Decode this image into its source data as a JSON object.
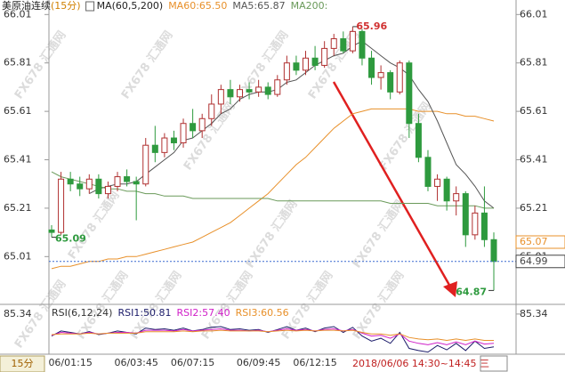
{
  "chart_data": [
    {
      "type": "candlestick",
      "title": "美原油连续",
      "period": "(15分)",
      "indicator": "MA(60,5,200)",
      "categories": [
        null,
        null,
        "06/01:15",
        null,
        null,
        null,
        null,
        null,
        null,
        "06/03:45",
        null,
        null,
        null,
        null,
        null,
        "06/07:15",
        null,
        null,
        null,
        null,
        null,
        null,
        "06/09:45",
        null,
        null,
        null,
        null,
        null,
        "06/12:15",
        null,
        null,
        null,
        null,
        null,
        null,
        null,
        null,
        null,
        null,
        null,
        null,
        null,
        null,
        null,
        null,
        null,
        null,
        null
      ],
      "cursor_label": "2018/06/06 14:30~14:45 三",
      "interval_button": "15分",
      "open": [
        65.12,
        65.11,
        65.33,
        65.31,
        65.29,
        65.33,
        65.27,
        65.3,
        65.34,
        65.32,
        65.31,
        65.47,
        65.44,
        65.5,
        65.48,
        65.56,
        65.53,
        65.58,
        65.64,
        65.7,
        65.67,
        65.7,
        65.69,
        65.71,
        65.68,
        65.74,
        65.81,
        65.78,
        65.83,
        65.8,
        65.87,
        65.91,
        65.86,
        65.94,
        65.83,
        65.75,
        65.77,
        65.69,
        65.81,
        65.56,
        65.42,
        65.3,
        65.33,
        65.24,
        65.27,
        65.1,
        65.19,
        65.08
      ],
      "high": [
        65.14,
        65.36,
        65.36,
        65.34,
        65.35,
        65.35,
        65.32,
        65.36,
        65.37,
        65.34,
        65.5,
        65.55,
        65.52,
        65.53,
        65.58,
        65.62,
        65.6,
        65.68,
        65.72,
        65.74,
        65.72,
        65.73,
        65.74,
        65.73,
        65.76,
        65.84,
        65.84,
        65.86,
        65.88,
        65.9,
        65.93,
        65.94,
        65.96,
        65.95,
        65.86,
        65.8,
        65.78,
        65.82,
        65.82,
        65.6,
        65.45,
        65.35,
        65.34,
        65.3,
        65.28,
        65.22,
        65.3,
        65.11
      ],
      "low": [
        65.09,
        65.1,
        65.28,
        65.26,
        65.27,
        65.25,
        65.25,
        65.28,
        65.3,
        65.16,
        65.3,
        65.4,
        65.42,
        65.45,
        65.46,
        65.5,
        65.5,
        65.55,
        65.6,
        65.64,
        65.65,
        65.66,
        65.67,
        65.66,
        65.67,
        65.72,
        65.76,
        65.76,
        65.78,
        65.79,
        65.84,
        65.85,
        65.85,
        65.8,
        65.72,
        65.7,
        65.66,
        65.68,
        65.5,
        65.4,
        65.28,
        65.24,
        65.2,
        65.18,
        65.05,
        65.08,
        65.05,
        64.87
      ],
      "close": [
        65.11,
        65.33,
        65.31,
        65.29,
        65.33,
        65.27,
        65.3,
        65.34,
        65.32,
        65.31,
        65.47,
        65.44,
        65.5,
        65.48,
        65.56,
        65.53,
        65.58,
        65.64,
        65.7,
        65.67,
        65.7,
        65.69,
        65.71,
        65.68,
        65.74,
        65.81,
        65.78,
        65.83,
        65.8,
        65.87,
        65.91,
        65.86,
        65.94,
        65.83,
        65.75,
        65.77,
        65.69,
        65.81,
        65.56,
        65.42,
        65.3,
        65.33,
        65.24,
        65.27,
        65.1,
        65.19,
        65.08,
        64.99
      ],
      "up_color": "#b03030",
      "down_color": "#2e9a3e",
      "series": [
        {
          "name": "MA60:65.50",
          "color": "#e8902a",
          "values": [
            64.96,
            64.97,
            64.97,
            64.98,
            64.99,
            64.99,
            65.0,
            65.0,
            65.01,
            65.01,
            65.02,
            65.03,
            65.04,
            65.05,
            65.06,
            65.07,
            65.09,
            65.11,
            65.13,
            65.15,
            65.18,
            65.21,
            65.24,
            65.27,
            65.31,
            65.35,
            65.39,
            65.42,
            65.46,
            65.5,
            65.54,
            65.57,
            65.6,
            65.61,
            65.62,
            65.62,
            65.62,
            65.62,
            65.62,
            65.61,
            65.61,
            65.61,
            65.6,
            65.6,
            65.59,
            65.59,
            65.58,
            65.57
          ]
        },
        {
          "name": "MA5:65.87",
          "color": "#555555",
          "values": [
            null,
            null,
            null,
            null,
            65.27,
            65.29,
            65.3,
            65.31,
            65.31,
            65.32,
            65.35,
            65.38,
            65.41,
            65.44,
            65.49,
            65.5,
            65.53,
            65.56,
            65.6,
            65.62,
            65.66,
            65.68,
            65.69,
            65.69,
            65.7,
            65.73,
            65.74,
            65.77,
            65.8,
            65.82,
            65.84,
            65.85,
            65.88,
            65.9,
            65.87,
            65.84,
            65.81,
            65.79,
            65.76,
            65.7,
            65.65,
            65.57,
            65.48,
            65.39,
            65.35,
            65.3,
            65.24,
            65.21
          ]
        },
        {
          "name": "MA200:",
          "color": "#6a9a5a",
          "values": [
            65.36,
            65.34,
            65.33,
            65.32,
            65.31,
            65.3,
            65.29,
            65.29,
            65.28,
            65.28,
            65.27,
            65.27,
            65.26,
            65.26,
            65.26,
            65.25,
            65.25,
            65.25,
            65.25,
            65.25,
            65.25,
            65.25,
            65.25,
            65.25,
            65.24,
            65.24,
            65.24,
            65.24,
            65.24,
            65.24,
            65.24,
            65.24,
            65.24,
            65.24,
            65.24,
            65.24,
            65.23,
            65.23,
            65.23,
            65.23,
            65.23,
            65.22,
            65.22,
            65.22,
            65.22,
            65.22,
            65.21,
            65.21
          ]
        }
      ],
      "ylim": [
        64.82,
        66.07
      ],
      "yticks": [
        66.01,
        65.81,
        65.61,
        65.41,
        65.21,
        65.01
      ],
      "annotations": [
        {
          "label": "65.96",
          "value": 65.96,
          "color": "#d03030"
        },
        {
          "label": "65.09",
          "value": 65.09,
          "color": "#2e9a3e"
        },
        {
          "label": "64.87",
          "value": 64.87,
          "color": "#2e9a3e"
        }
      ],
      "price_marks": [
        {
          "label": "65.07",
          "value": 65.07,
          "color": "#e8902a"
        },
        {
          "label": "64.99",
          "value": 64.99,
          "color": "#444444"
        }
      ],
      "watermark": "FX678 汇通网",
      "grid": false
    },
    {
      "type": "line",
      "title": "RSI(6,12,24)",
      "series": [
        {
          "name": "RSI1:50.81",
          "color": "#1c1c6a",
          "values": [
            55,
            62,
            60,
            58,
            61,
            57,
            59,
            62,
            60,
            58,
            66,
            64,
            65,
            63,
            66,
            62,
            64,
            67,
            68,
            64,
            65,
            63,
            64,
            60,
            64,
            68,
            63,
            66,
            61,
            66,
            68,
            60,
            67,
            55,
            48,
            52,
            45,
            60,
            38,
            35,
            33,
            42,
            36,
            45,
            35,
            48,
            38,
            40
          ]
        },
        {
          "name": "RSI2:57.40",
          "color": "#d020c8",
          "values": [
            56,
            60,
            59,
            58,
            60,
            58,
            59,
            60,
            60,
            59,
            63,
            63,
            63,
            62,
            64,
            62,
            63,
            64,
            65,
            63,
            63,
            62,
            63,
            61,
            63,
            65,
            63,
            64,
            62,
            64,
            65,
            62,
            64,
            59,
            55,
            56,
            52,
            58,
            48,
            45,
            43,
            46,
            43,
            47,
            43,
            48,
            44,
            45
          ]
        },
        {
          "name": "RSI3:60.56",
          "color": "#e8902a",
          "values": [
            57,
            58,
            58,
            58,
            59,
            58,
            59,
            59,
            59,
            59,
            61,
            61,
            61,
            61,
            62,
            61,
            62,
            62,
            63,
            62,
            62,
            62,
            62,
            61,
            62,
            63,
            62,
            63,
            62,
            63,
            63,
            62,
            63,
            60,
            58,
            58,
            56,
            58,
            53,
            51,
            50,
            51,
            49,
            51,
            49,
            51,
            49,
            49
          ]
        }
      ],
      "ylim": [
        30,
        95
      ],
      "yticks": [
        85.34
      ]
    }
  ]
}
